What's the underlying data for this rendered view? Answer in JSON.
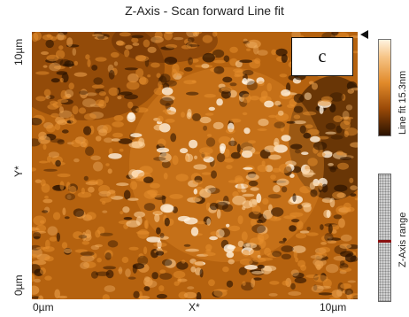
{
  "header": {
    "title": "Z-Axis - Scan forward   Line fit"
  },
  "panel_label": "c",
  "axes": {
    "y_top": "10µm",
    "y_mid": "Y*",
    "y_bottom": "0µm",
    "x_left": "0µm",
    "x_mid": "X*",
    "x_right": "10µm"
  },
  "colorbar": {
    "label": "Line fit 15.3nm"
  },
  "range": {
    "label": "Z-Axis range"
  },
  "colors": {
    "dark": "#2a1200",
    "mid": "#b5620f",
    "bright": "#e8902e",
    "highlight": "#fff0d8"
  }
}
